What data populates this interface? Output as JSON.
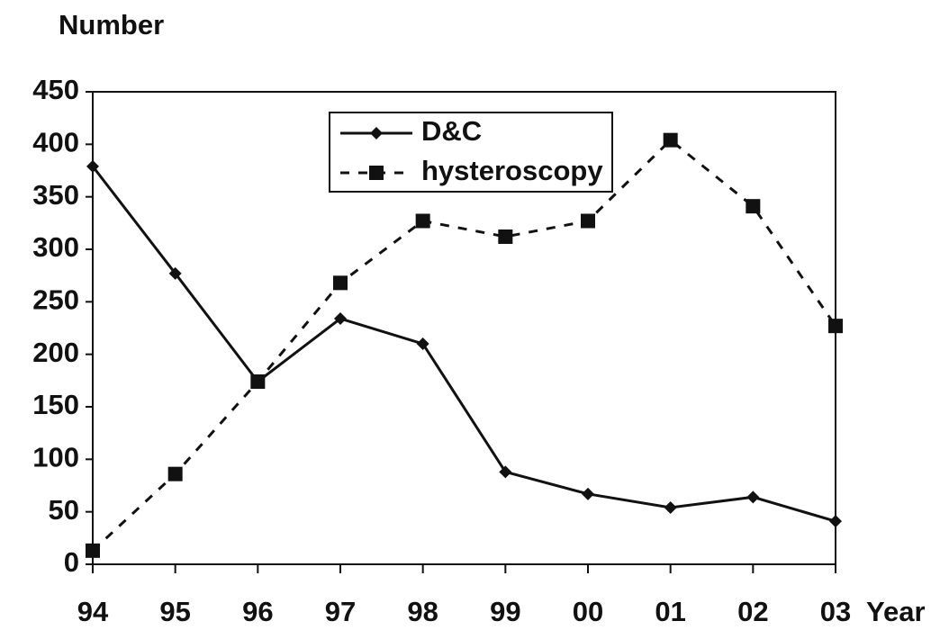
{
  "chart_data": {
    "type": "line",
    "y_label": "Number",
    "x_label": "Year",
    "categories": [
      "94",
      "95",
      "96",
      "97",
      "98",
      "99",
      "00",
      "01",
      "02",
      "03"
    ],
    "series": [
      {
        "name": "D&C",
        "color": "#111111",
        "line_style": "solid",
        "marker": "diamond",
        "values": [
          379,
          277,
          174,
          234,
          210,
          88,
          67,
          54,
          64,
          41
        ]
      },
      {
        "name": "hysteroscopy",
        "color": "#111111",
        "line_style": "dashed",
        "marker": "square",
        "values": [
          13,
          86,
          174,
          268,
          327,
          312,
          327,
          404,
          341,
          227
        ]
      }
    ],
    "ylim": [
      0,
      450
    ],
    "yticks": [
      0,
      50,
      100,
      150,
      200,
      250,
      300,
      350,
      400,
      450
    ],
    "grid": false,
    "legend": "top-center"
  }
}
